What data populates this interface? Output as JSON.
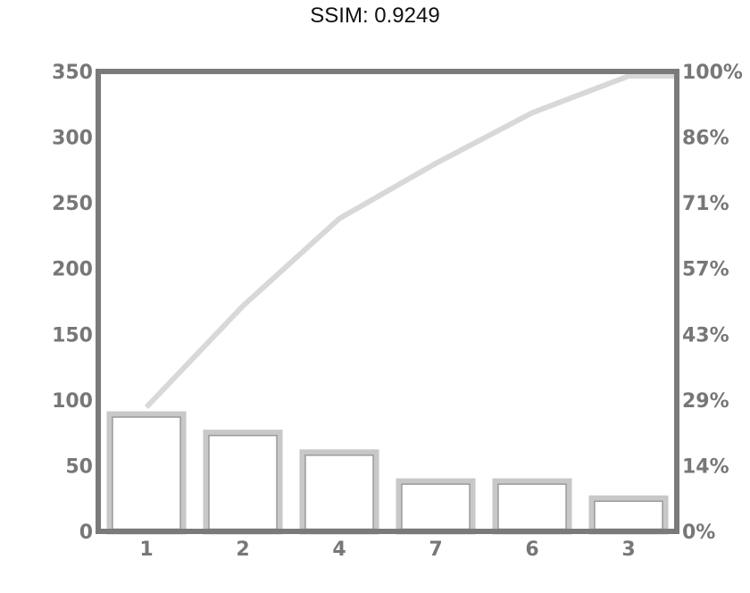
{
  "title": "SSIM: 0.9249",
  "chart_data": {
    "type": "bar",
    "categories": [
      "1",
      "2",
      "4",
      "7",
      "6",
      "3"
    ],
    "values": [
      89,
      75,
      60,
      38,
      38,
      25
    ],
    "line_values": [
      27,
      49,
      68,
      80,
      91,
      99
    ],
    "ylim_left": [
      0,
      350
    ],
    "left_ticks": [
      "0",
      "50",
      "100",
      "150",
      "200",
      "250",
      "300",
      "350"
    ],
    "ylim_right": [
      0,
      100
    ],
    "right_ticks": [
      "0%",
      "14%",
      "29%",
      "43%",
      "57%",
      "71%",
      "86%",
      "100%"
    ],
    "grid": false,
    "colors": {
      "frame": "#7a7a7a",
      "bar_edge": "#c8c8c8",
      "bar_edge_inner": "#9a9a9a",
      "line": "#d8d8d8",
      "tick_label": "#777777"
    }
  }
}
